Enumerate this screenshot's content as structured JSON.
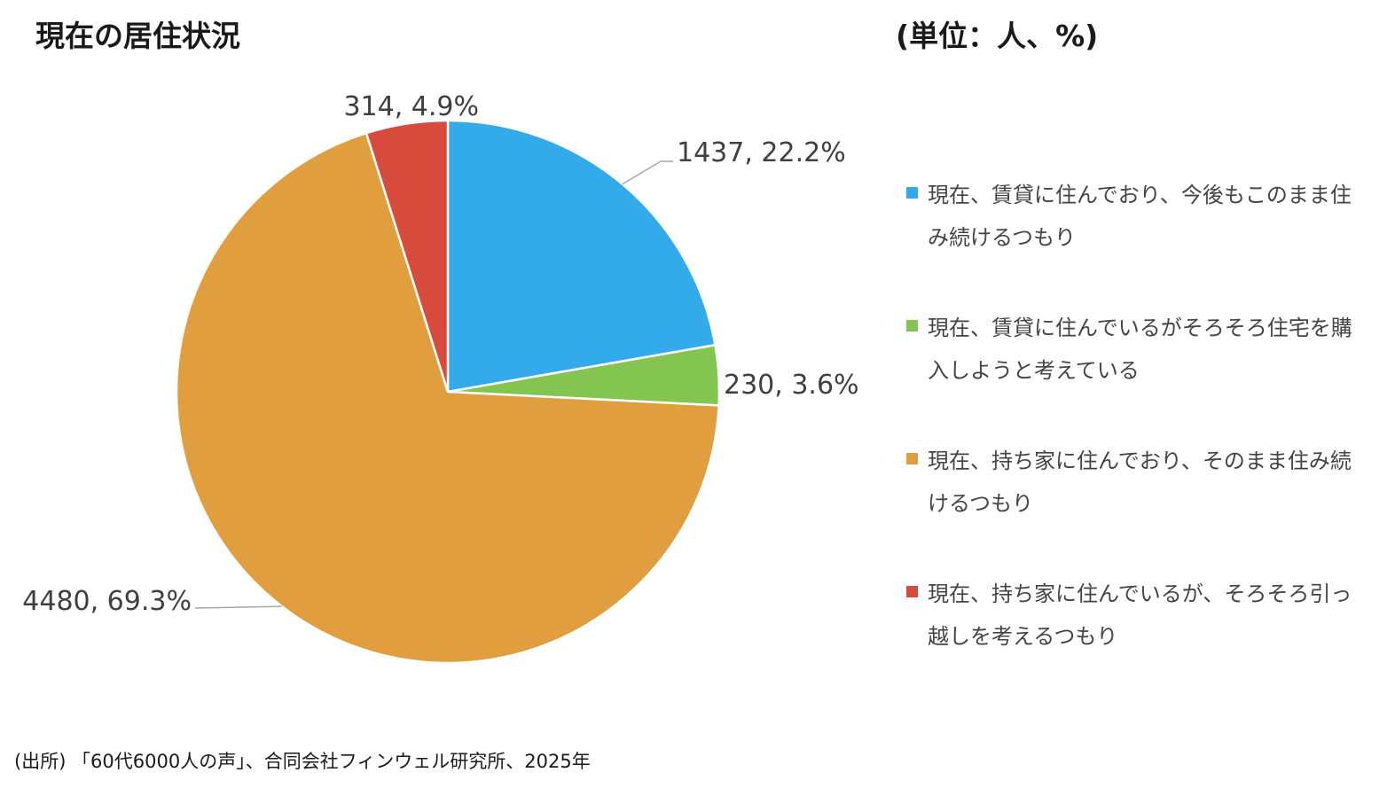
{
  "title": "現在の居住状況",
  "unit_note": "(単位：人、%)",
  "source": "(出所) 「60代6000人の声」、合同会社フィンウェル研究所、2025年",
  "chart_data": {
    "type": "pie",
    "start_angle_deg": 0,
    "direction": "clockwise",
    "legend_position": "right",
    "slices": [
      {
        "label": "現在、賃貸に住んでおり、今後もこのまま住み続けるつもり",
        "value": 1437,
        "percent": 22.2,
        "data_label": "1437, 22.2%",
        "color": "#33ABEA"
      },
      {
        "label": "現在、賃貸に住んでいるがそろそろ住宅を購入しようと考えている",
        "value": 230,
        "percent": 3.6,
        "data_label": "230, 3.6%",
        "color": "#84C551"
      },
      {
        "label": "現在、持ち家に住んでおり、そのまま住み続けるつもり",
        "value": 4480,
        "percent": 69.3,
        "data_label": "4480, 69.3%",
        "color": "#E19E3F"
      },
      {
        "label": "現在、持ち家に住んでいるが、そろそろ引っ越しを考えるつもり",
        "value": 314,
        "percent": 4.9,
        "data_label": "314, 4.9%",
        "color": "#D64B3B"
      }
    ]
  }
}
